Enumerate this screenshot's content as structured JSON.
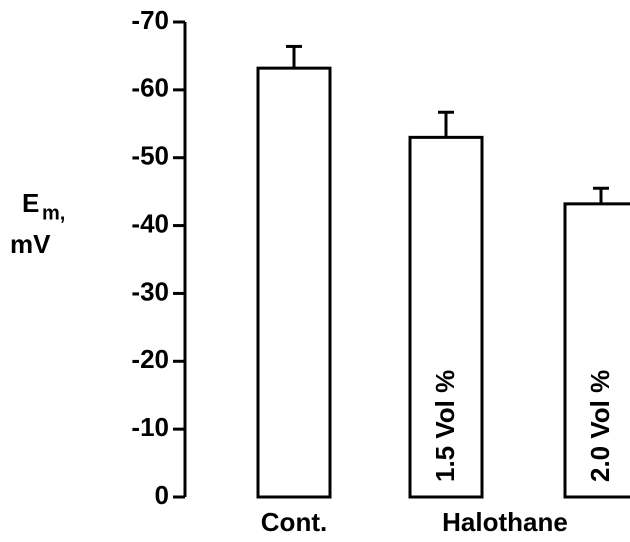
{
  "chart_data": {
    "type": "bar",
    "y_label": "E",
    "y_label_sub": "m,",
    "y_label_unit": "mV",
    "categories": [
      "Cont.",
      "1.5 Vol %",
      "2.0 Vol %"
    ],
    "group_label": "Halothane",
    "values": [
      -63.2,
      -53.0,
      -43.2
    ],
    "errors": [
      3.2,
      3.7,
      2.3
    ],
    "color": "#ffffff",
    "ylim": [
      0,
      -70
    ],
    "yticks": [
      0,
      -10,
      -20,
      -30,
      -40,
      -50,
      -60,
      -70
    ]
  }
}
